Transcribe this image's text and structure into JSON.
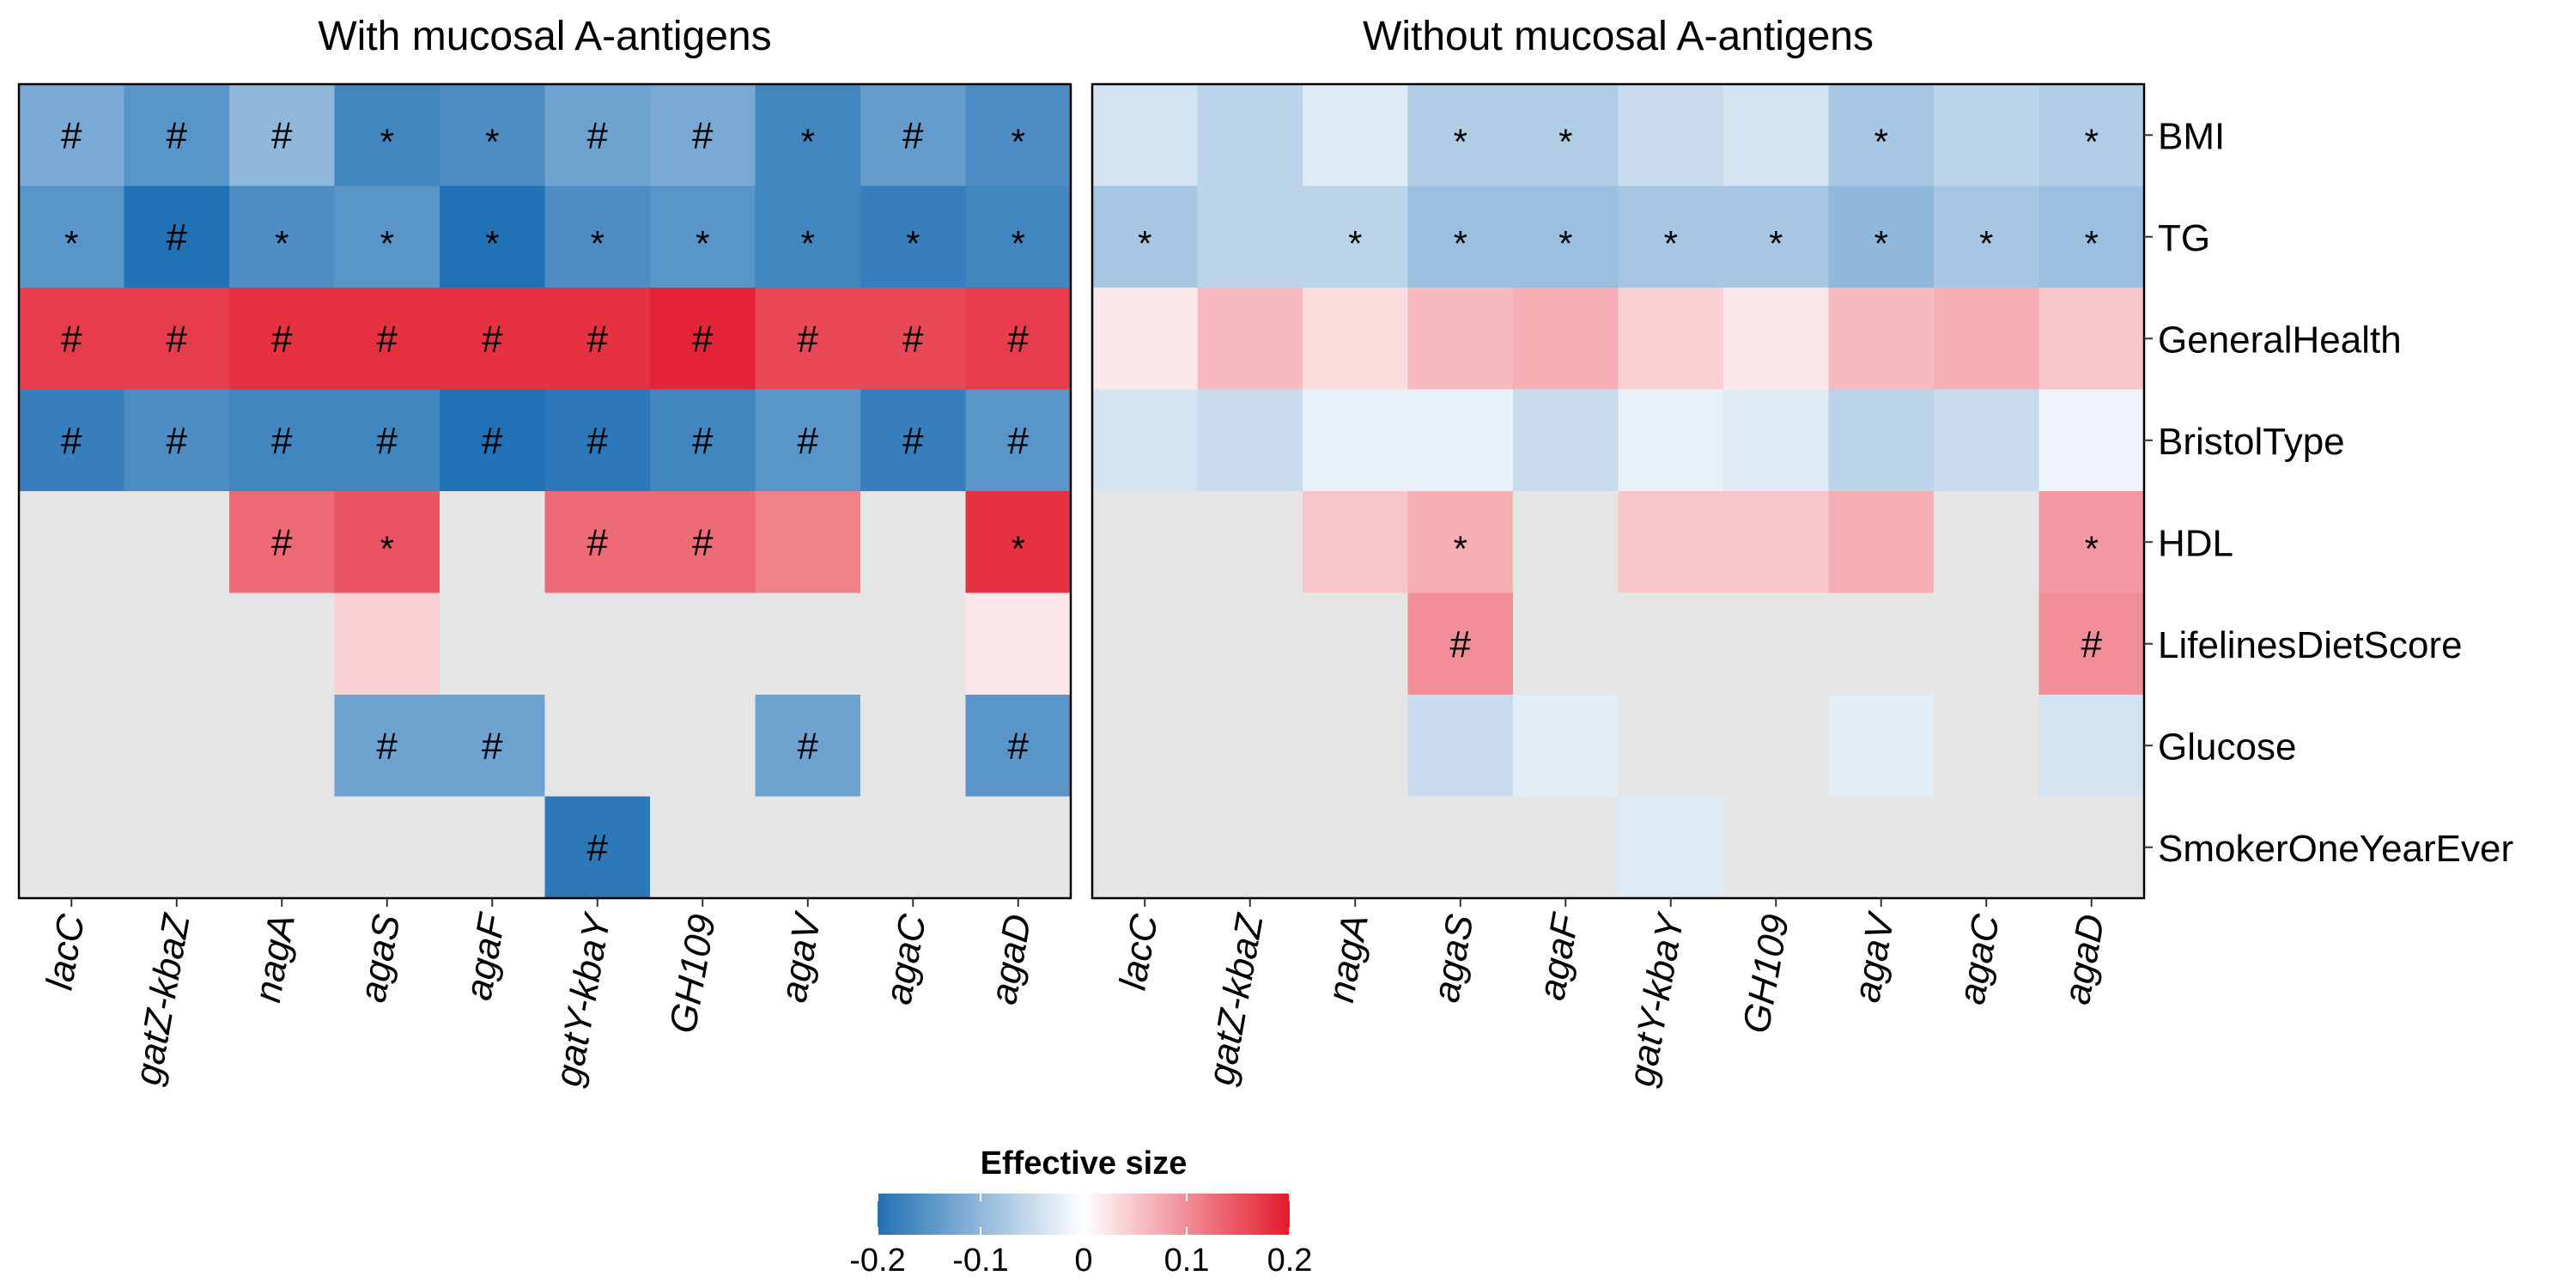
{
  "chart_data": {
    "type": "heatmap",
    "genes": [
      "lacC",
      "gatZ-kbaZ",
      "nagA",
      "agaS",
      "agaF",
      "gatY-kbaY",
      "GH109",
      "agaV",
      "agaC",
      "agaD"
    ],
    "traits": [
      "BMI",
      "TG",
      "GeneralHealth",
      "BristolType",
      "HDL",
      "LifelinesDietScore",
      "Glucose",
      "SmokerOneYearEver"
    ],
    "panels": [
      {
        "title": "With mucosal A-antigens",
        "values": [
          [
            -0.12,
            -0.15,
            -0.1,
            -0.17,
            -0.16,
            -0.13,
            -0.12,
            -0.17,
            -0.14,
            -0.16
          ],
          [
            -0.15,
            -0.2,
            -0.16,
            -0.15,
            -0.2,
            -0.16,
            -0.15,
            -0.17,
            -0.18,
            -0.17
          ],
          [
            0.17,
            0.17,
            0.18,
            0.18,
            0.18,
            0.18,
            0.19,
            0.16,
            0.16,
            0.17
          ],
          [
            -0.18,
            -0.16,
            -0.17,
            -0.17,
            -0.2,
            -0.19,
            -0.17,
            -0.15,
            -0.18,
            -0.15
          ],
          [
            null,
            null,
            0.13,
            0.15,
            null,
            0.13,
            0.13,
            0.11,
            null,
            0.18
          ],
          [
            null,
            null,
            null,
            0.04,
            null,
            null,
            null,
            null,
            null,
            0.02
          ],
          [
            null,
            null,
            null,
            -0.13,
            -0.13,
            null,
            null,
            -0.13,
            null,
            -0.15
          ],
          [
            null,
            null,
            null,
            null,
            null,
            -0.19,
            null,
            null,
            null,
            null
          ]
        ],
        "marks": [
          [
            "#",
            "#",
            "#",
            "*",
            "*",
            "#",
            "#",
            "*",
            "#",
            "*"
          ],
          [
            "*",
            "#",
            "*",
            "*",
            "*",
            "*",
            "*",
            "*",
            "*",
            "*"
          ],
          [
            "#",
            "#",
            "#",
            "#",
            "#",
            "#",
            "#",
            "#",
            "#",
            "#"
          ],
          [
            "#",
            "#",
            "#",
            "#",
            "#",
            "#",
            "#",
            "#",
            "#",
            "#"
          ],
          [
            "",
            "",
            "#",
            "*",
            "",
            "#",
            "#",
            "",
            "",
            "*"
          ],
          [
            "",
            "",
            "",
            "",
            "",
            "",
            "",
            "",
            "",
            ""
          ],
          [
            "",
            "",
            "",
            "#",
            "#",
            "",
            "",
            "#",
            "",
            "#"
          ],
          [
            "",
            "",
            "",
            "",
            "",
            "#",
            "",
            "",
            "",
            ""
          ]
        ]
      },
      {
        "title": "Without mucosal A-antigens",
        "values": [
          [
            -0.04,
            -0.06,
            -0.03,
            -0.07,
            -0.07,
            -0.05,
            -0.04,
            -0.08,
            -0.06,
            -0.07
          ],
          [
            -0.08,
            -0.06,
            -0.06,
            -0.09,
            -0.09,
            -0.08,
            -0.08,
            -0.1,
            -0.08,
            -0.09
          ],
          [
            0.02,
            0.06,
            0.03,
            0.06,
            0.07,
            0.04,
            0.02,
            0.06,
            0.07,
            0.05
          ],
          [
            -0.04,
            -0.05,
            -0.02,
            -0.02,
            -0.05,
            -0.02,
            -0.03,
            -0.06,
            -0.05,
            -0.015
          ],
          [
            null,
            null,
            0.05,
            0.07,
            null,
            0.05,
            0.05,
            0.07,
            null,
            0.09
          ],
          [
            null,
            null,
            null,
            0.1,
            null,
            null,
            null,
            null,
            null,
            0.1
          ],
          [
            null,
            null,
            null,
            -0.05,
            -0.025,
            null,
            null,
            -0.025,
            null,
            -0.04
          ],
          [
            null,
            null,
            null,
            null,
            null,
            -0.03,
            null,
            null,
            null,
            null
          ]
        ],
        "marks": [
          [
            "",
            "",
            "",
            "*",
            "*",
            "",
            "",
            "*",
            "",
            "*"
          ],
          [
            "*",
            "",
            "*",
            "*",
            "*",
            "*",
            "*",
            "*",
            "*",
            "*"
          ],
          [
            "",
            "",
            "",
            "",
            "",
            "",
            "",
            "",
            "",
            ""
          ],
          [
            "",
            "",
            "",
            "",
            "",
            "",
            "",
            "",
            "",
            ""
          ],
          [
            "",
            "",
            "",
            "*",
            "",
            "",
            "",
            "",
            "",
            "*"
          ],
          [
            "",
            "",
            "",
            "#",
            "",
            "",
            "",
            "",
            "",
            "#"
          ],
          [
            "",
            "",
            "",
            "",
            "",
            "",
            "",
            "",
            "",
            ""
          ],
          [
            "",
            "",
            "",
            "",
            "",
            "",
            "",
            "",
            "",
            ""
          ]
        ]
      }
    ],
    "legend": {
      "title": "Effective size",
      "range": [
        -0.2,
        0.2
      ],
      "ticks": [
        "-0.2",
        "-0.1",
        "0",
        "0.1",
        "0.2"
      ],
      "tick_values": [
        -0.2,
        -0.1,
        0,
        0.1,
        0.2
      ],
      "placement": "bottom"
    },
    "colors": {
      "low": "#2171b5",
      "mid": "#ffffff",
      "high": "#e31a2c",
      "missing": "#e5e5e5"
    }
  }
}
